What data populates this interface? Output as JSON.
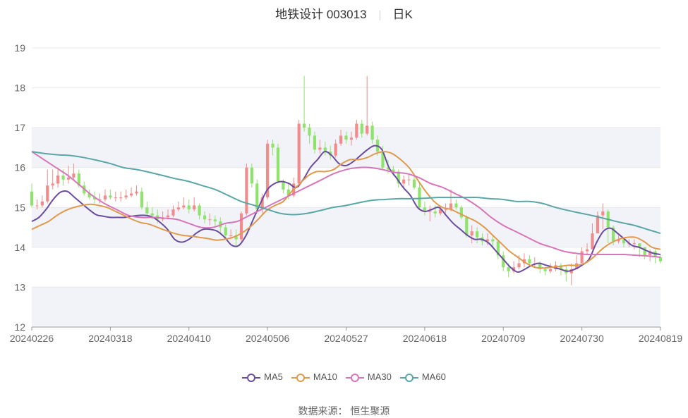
{
  "header": {
    "title": "地铁设计 003013",
    "period": "日K"
  },
  "source": "数据来源：  恒生聚源",
  "colors": {
    "up": "#f28b8b",
    "down": "#8fe36c",
    "band": "#f1f3f9",
    "grid": "#e8e8e8"
  },
  "chart_data": {
    "type": "candlestick",
    "ylim": [
      12,
      19
    ],
    "yticks": [
      "12",
      "13",
      "14",
      "15",
      "16",
      "17",
      "18",
      "19"
    ],
    "xtick_labels": [
      "20240226",
      "20240318",
      "20240410",
      "20240506",
      "20240527",
      "20240618",
      "20240709",
      "20240730",
      "20240819"
    ],
    "xtick_index": [
      0,
      15,
      30,
      45,
      60,
      75,
      90,
      105,
      120
    ],
    "x_count": 121,
    "legend": [
      {
        "name": "MA5",
        "color": "#6a4ba0"
      },
      {
        "name": "MA10",
        "color": "#e09a4d"
      },
      {
        "name": "MA30",
        "color": "#d874b9"
      },
      {
        "name": "MA60",
        "color": "#5aa6a6"
      }
    ],
    "candles": {
      "open": [
        15.4,
        15.05,
        15.05,
        15.15,
        15.55,
        15.6,
        15.8,
        15.7,
        15.75,
        15.85,
        15.55,
        15.35,
        15.25,
        15.2,
        15.2,
        15.3,
        15.25,
        15.25,
        15.25,
        15.3,
        15.35,
        15.4,
        15.0,
        14.85,
        14.8,
        14.7,
        14.75,
        14.8,
        14.95,
        15.0,
        15.05,
        14.95,
        15.05,
        14.8,
        14.7,
        14.7,
        14.65,
        14.5,
        14.3,
        14.3,
        14.2,
        14.85,
        16.0,
        15.6,
        14.95,
        15.25,
        16.6,
        16.5,
        15.65,
        15.45,
        15.3,
        15.6,
        17.1,
        17.0,
        16.8,
        16.45,
        16.5,
        16.4,
        16.3,
        16.6,
        16.8,
        16.7,
        16.75,
        17.1,
        16.85,
        17.05,
        16.7,
        16.4,
        16.0,
        15.95,
        15.9,
        15.6,
        15.7,
        15.7,
        15.5,
        15.0,
        14.9,
        14.9,
        14.85,
        14.95,
        14.95,
        15.1,
        15.0,
        14.75,
        14.3,
        14.4,
        14.25,
        14.15,
        14.2,
        14.15,
        13.8,
        13.5,
        13.4,
        13.5,
        13.6,
        13.7,
        13.6,
        13.6,
        13.45,
        13.4,
        13.45,
        13.55,
        13.45,
        13.35,
        13.45,
        13.6,
        13.9,
        13.95,
        14.35,
        14.8,
        14.9,
        14.5,
        14.15,
        14.2,
        14.1,
        14.1,
        14.1,
        14.0,
        13.8,
        13.9,
        13.75
      ],
      "close": [
        15.05,
        15.05,
        15.15,
        15.55,
        15.6,
        15.8,
        15.7,
        15.75,
        15.85,
        15.55,
        15.35,
        15.25,
        15.2,
        15.2,
        15.3,
        15.25,
        15.25,
        15.25,
        15.3,
        15.35,
        15.4,
        15.0,
        14.85,
        14.8,
        14.7,
        14.75,
        14.8,
        14.95,
        15.0,
        15.05,
        14.95,
        15.05,
        14.8,
        14.7,
        14.7,
        14.65,
        14.5,
        14.3,
        14.3,
        14.2,
        14.85,
        16.0,
        15.6,
        14.95,
        15.25,
        16.6,
        16.5,
        15.65,
        15.45,
        15.3,
        15.6,
        17.1,
        17.0,
        16.8,
        16.45,
        16.5,
        16.4,
        16.3,
        16.6,
        16.8,
        16.7,
        16.75,
        17.1,
        16.85,
        17.05,
        16.7,
        16.4,
        16.0,
        15.95,
        15.9,
        15.6,
        15.7,
        15.7,
        15.5,
        15.0,
        14.9,
        14.9,
        14.85,
        14.95,
        14.95,
        15.1,
        15.0,
        14.75,
        14.3,
        14.4,
        14.25,
        14.15,
        14.2,
        14.15,
        13.8,
        13.5,
        13.4,
        13.5,
        13.6,
        13.7,
        13.6,
        13.6,
        13.45,
        13.4,
        13.45,
        13.55,
        13.45,
        13.35,
        13.45,
        13.6,
        13.9,
        13.95,
        14.35,
        14.8,
        14.9,
        14.5,
        14.15,
        14.2,
        14.1,
        14.1,
        14.1,
        14.0,
        13.8,
        13.9,
        13.75,
        13.65
      ],
      "high": [
        15.6,
        15.2,
        15.3,
        15.95,
        15.95,
        16.0,
        15.95,
        16.05,
        16.1,
        15.95,
        15.65,
        15.45,
        15.4,
        15.35,
        15.45,
        15.45,
        15.4,
        15.4,
        15.45,
        15.5,
        15.55,
        15.5,
        15.15,
        15.0,
        14.95,
        14.9,
        14.95,
        15.05,
        15.15,
        15.25,
        15.2,
        15.25,
        15.1,
        14.9,
        14.85,
        14.8,
        14.75,
        14.6,
        14.45,
        14.45,
        14.9,
        16.1,
        16.1,
        15.7,
        15.35,
        16.7,
        16.7,
        16.6,
        15.7,
        15.6,
        15.75,
        17.2,
        18.3,
        17.1,
        16.9,
        16.7,
        16.65,
        16.55,
        16.7,
        16.95,
        16.9,
        16.9,
        17.2,
        17.2,
        18.3,
        17.15,
        16.8,
        16.55,
        16.2,
        16.05,
        15.95,
        15.8,
        15.85,
        15.8,
        15.6,
        15.15,
        15.05,
        15.05,
        15.05,
        15.1,
        15.45,
        15.2,
        15.05,
        14.8,
        14.55,
        14.5,
        14.35,
        14.35,
        14.3,
        14.2,
        13.9,
        13.6,
        13.65,
        13.8,
        13.85,
        13.8,
        13.75,
        13.65,
        13.5,
        13.6,
        13.65,
        13.6,
        13.55,
        13.6,
        13.8,
        14.0,
        14.1,
        14.6,
        14.9,
        15.1,
        14.95,
        14.55,
        14.3,
        14.25,
        14.2,
        14.2,
        14.1,
        14.0,
        13.95,
        13.95,
        13.8
      ],
      "low": [
        15.0,
        14.95,
        15.0,
        15.1,
        15.45,
        15.5,
        15.55,
        15.6,
        15.7,
        15.5,
        15.3,
        15.2,
        15.1,
        15.1,
        15.15,
        15.2,
        15.15,
        15.15,
        15.2,
        15.25,
        15.3,
        14.95,
        14.8,
        14.7,
        14.6,
        14.65,
        14.7,
        14.75,
        14.9,
        14.95,
        14.85,
        14.9,
        14.7,
        14.6,
        14.55,
        14.5,
        14.35,
        14.2,
        14.2,
        14.0,
        14.15,
        14.8,
        15.5,
        14.85,
        14.85,
        15.2,
        16.3,
        15.6,
        15.35,
        15.2,
        15.25,
        15.5,
        16.9,
        16.6,
        16.35,
        16.35,
        16.3,
        16.2,
        16.25,
        16.55,
        16.6,
        16.55,
        16.7,
        16.75,
        16.8,
        16.6,
        16.3,
        15.95,
        15.85,
        15.8,
        15.5,
        15.5,
        15.55,
        15.45,
        14.95,
        14.8,
        14.65,
        14.75,
        14.8,
        14.85,
        14.9,
        14.95,
        14.7,
        14.25,
        14.1,
        14.1,
        14.05,
        14.05,
        14.0,
        13.7,
        13.4,
        13.25,
        13.35,
        13.45,
        13.5,
        13.5,
        13.5,
        13.35,
        13.3,
        13.35,
        13.4,
        13.3,
        13.15,
        13.05,
        13.5,
        13.8,
        13.8,
        14.3,
        14.7,
        14.45,
        14.1,
        14.05,
        14.1,
        14.0,
        14.0,
        13.95,
        13.75,
        13.7,
        13.65,
        13.6,
        13.6
      ]
    },
    "series": [
      {
        "name": "MA5",
        "values": [
          14.65,
          14.75,
          14.95,
          15.2,
          15.38,
          15.4,
          15.25,
          15.1,
          14.95,
          14.82,
          14.78,
          14.75,
          14.75,
          14.75,
          14.78,
          14.8,
          14.8,
          14.75,
          14.62,
          14.45,
          14.2,
          14.13,
          14.2,
          14.35,
          14.45,
          14.45,
          14.4,
          14.25,
          14.05,
          14.05,
          14.3,
          14.7,
          15.1,
          15.45,
          15.6,
          15.65,
          15.6,
          15.5,
          15.7,
          16.0,
          16.2,
          16.4,
          16.3,
          16.1,
          16.05,
          16.15,
          16.3,
          16.45,
          16.55,
          16.45,
          16.0,
          15.75,
          15.5,
          15.3,
          15.0,
          14.9,
          14.95,
          15.0,
          14.8,
          14.6,
          14.45,
          14.3,
          14.2,
          14.2,
          14.1,
          13.9,
          13.7,
          13.5,
          13.38,
          13.45,
          13.55,
          13.6,
          13.55,
          13.5,
          13.45,
          13.4,
          13.45,
          13.55,
          13.7,
          14.1,
          14.4,
          14.48,
          14.35,
          14.2,
          14.05,
          14.0,
          13.92,
          13.85,
          13.82
        ]
      },
      {
        "name": "MA10",
        "values": [
          14.45,
          14.55,
          14.65,
          14.8,
          14.92,
          15.0,
          15.05,
          15.08,
          15.05,
          15.0,
          14.9,
          14.8,
          14.7,
          14.62,
          14.58,
          14.5,
          14.42,
          14.35,
          14.3,
          14.28,
          14.25,
          14.22,
          14.18,
          14.2,
          14.25,
          14.35,
          14.5,
          14.7,
          14.92,
          15.05,
          15.15,
          15.4,
          15.6,
          15.8,
          15.9,
          15.9,
          15.95,
          16.1,
          16.2,
          16.2,
          16.25,
          16.35,
          16.4,
          16.35,
          16.2,
          16.0,
          15.7,
          15.4,
          15.15,
          15.0,
          14.95,
          14.85,
          14.75,
          14.65,
          14.5,
          14.3,
          14.1,
          13.9,
          13.75,
          13.6,
          13.5,
          13.48,
          13.5,
          13.52,
          13.55,
          13.55,
          13.6,
          13.75,
          13.95,
          14.1,
          14.2,
          14.25,
          14.25,
          14.15,
          14.0,
          13.95
        ]
      },
      {
        "name": "MA30",
        "values": [
          16.4,
          16.2,
          16.0,
          15.8,
          15.55,
          15.3,
          15.1,
          14.95,
          14.8,
          14.75,
          14.75,
          14.73,
          14.7,
          14.6,
          14.5,
          14.5,
          14.6,
          14.65,
          14.8,
          14.95,
          15.1,
          15.25,
          15.4,
          15.55,
          15.7,
          15.85,
          15.95,
          16.0,
          16.0,
          15.95,
          15.88,
          15.85,
          15.75,
          15.6,
          15.5,
          15.35,
          15.2,
          15.0,
          14.75,
          14.55,
          14.4,
          14.25,
          14.1,
          14.0,
          13.9,
          13.85,
          13.82,
          13.82,
          13.82,
          13.82,
          13.8,
          13.78,
          13.75
        ]
      },
      {
        "name": "MA60",
        "values": [
          16.4,
          16.35,
          16.32,
          16.3,
          16.25,
          16.18,
          16.1,
          16.0,
          15.95,
          15.88,
          15.8,
          15.72,
          15.65,
          15.55,
          15.45,
          15.3,
          15.15,
          15.05,
          14.95,
          14.85,
          14.82,
          14.85,
          14.92,
          15.0,
          15.05,
          15.12,
          15.18,
          15.2,
          15.22,
          15.22,
          15.23,
          15.25,
          15.25,
          15.25,
          15.25,
          15.22,
          15.2,
          15.15,
          15.15,
          15.1,
          15.0,
          14.92,
          14.85,
          14.78,
          14.7,
          14.62,
          14.55,
          14.45,
          14.35
        ]
      }
    ]
  }
}
